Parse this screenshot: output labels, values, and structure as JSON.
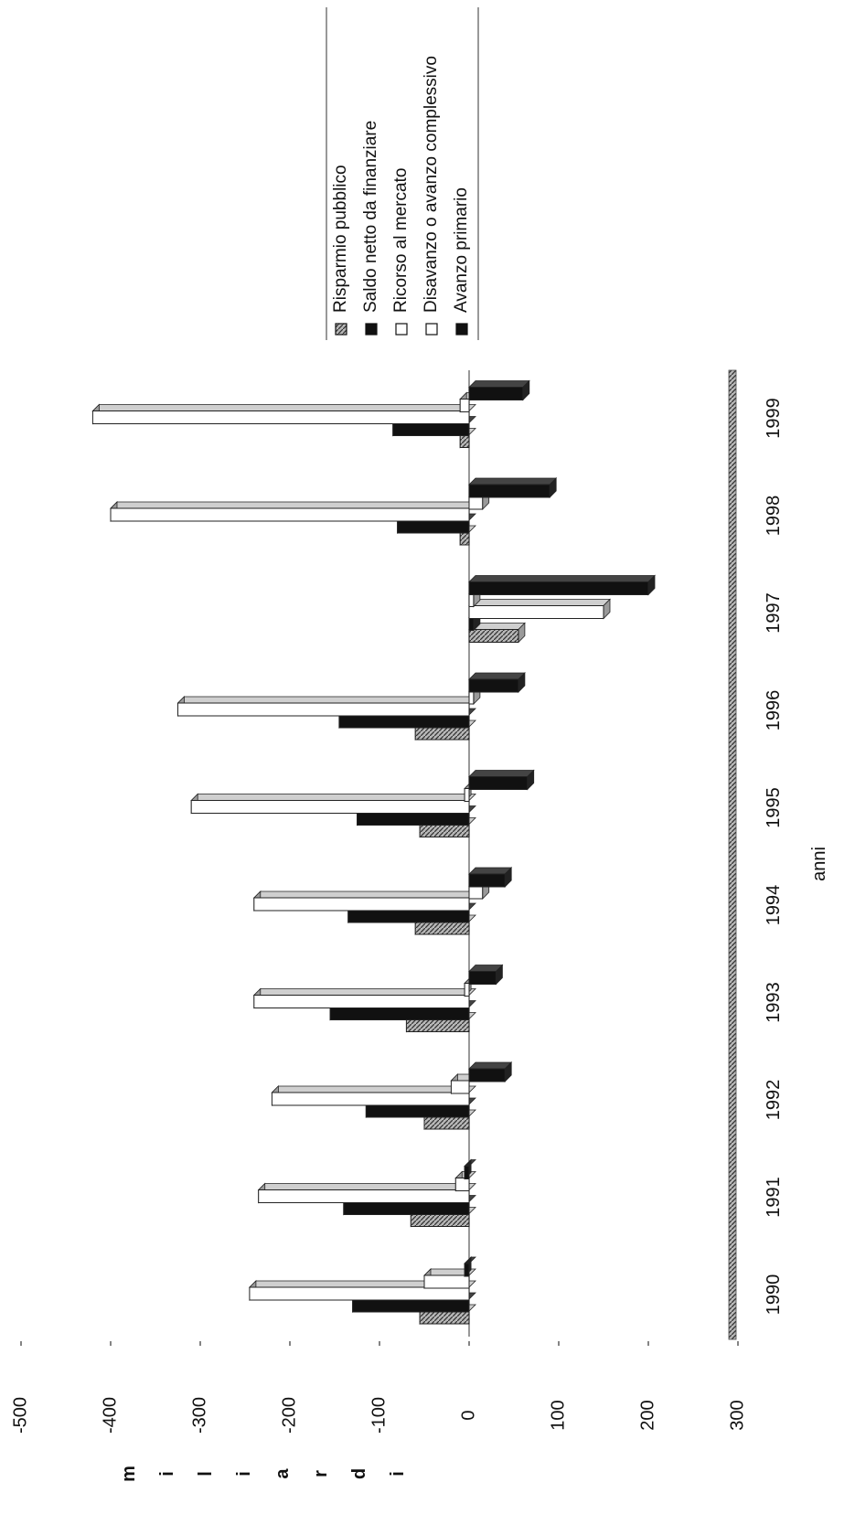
{
  "chart_data": {
    "type": "bar",
    "orientation": "horizontal-bars, page rotated 90 degrees",
    "xlabel": "anni",
    "ylabel": "miliardi",
    "ylim": [
      -500,
      300
    ],
    "y_ticks": [
      "-500",
      "-400",
      "-300",
      "-200",
      "-100",
      "0",
      "100",
      "200",
      "300"
    ],
    "categories": [
      "1990",
      "1991",
      "1992",
      "1993",
      "1994",
      "1995",
      "1996",
      "1997",
      "1998",
      "1999"
    ],
    "series": [
      {
        "name": "Risparmio pubblico",
        "color": "#9a9a9a",
        "values": [
          -55,
          -65,
          -50,
          -70,
          -60,
          -55,
          -60,
          55,
          -10,
          -10
        ]
      },
      {
        "name": "Saldo netto da finanziare",
        "color": "#111111",
        "values": [
          -130,
          -140,
          -115,
          -155,
          -135,
          -125,
          -145,
          5,
          -80,
          -85
        ]
      },
      {
        "name": "Ricorso al mercato",
        "color": "#ffffff",
        "values": [
          -245,
          -235,
          -220,
          -240,
          -240,
          -310,
          -325,
          150,
          -400,
          -420
        ]
      },
      {
        "name": "Disavanzo o avanzo complessivo",
        "color": "#ffffff",
        "values": [
          -50,
          -15,
          -20,
          -5,
          15,
          -5,
          5,
          5,
          15,
          -10
        ]
      },
      {
        "name": "Avanzo primario",
        "color": "#111111",
        "values": [
          -5,
          -5,
          40,
          30,
          40,
          65,
          55,
          200,
          90,
          60
        ]
      }
    ],
    "legend": "top-right"
  }
}
